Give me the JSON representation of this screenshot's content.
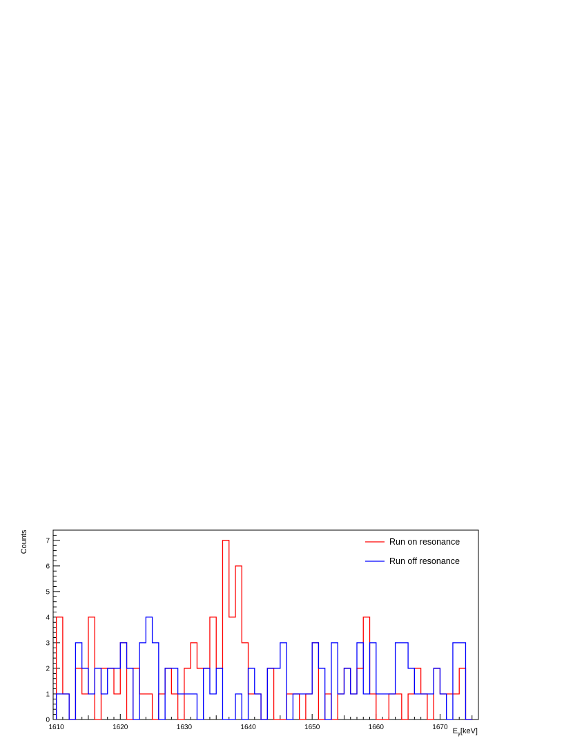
{
  "chart_data": {
    "type": "step",
    "xlabel": "E",
    "xlabel_sub": "γ",
    "xlabel_unit": "[keV]",
    "ylabel": "Counts",
    "xlim": [
      1609.5,
      1676
    ],
    "ylim": [
      0,
      7.4
    ],
    "xticks": [
      1610,
      1620,
      1630,
      1640,
      1650,
      1660,
      1670
    ],
    "yticks": [
      0,
      1,
      2,
      3,
      4,
      5,
      6,
      7
    ],
    "legend_position": "top-right",
    "grid": false,
    "series": [
      {
        "name": "Run on resonance",
        "color": "#ff0000",
        "edges": [
          1610,
          1611,
          1612,
          1613,
          1614,
          1615,
          1616,
          1617,
          1618,
          1619,
          1620,
          1621,
          1622,
          1623,
          1624,
          1625,
          1626,
          1627,
          1628,
          1629,
          1630,
          1631,
          1632,
          1633,
          1634,
          1635,
          1636,
          1637,
          1638,
          1639,
          1640,
          1641,
          1642,
          1643,
          1644,
          1645,
          1646,
          1647,
          1648,
          1649,
          1650,
          1651,
          1652,
          1653,
          1654,
          1655,
          1656,
          1657,
          1658,
          1659,
          1660,
          1661,
          1662,
          1663,
          1664,
          1665,
          1666,
          1667,
          1668,
          1669,
          1670,
          1671,
          1672,
          1673,
          1674,
          1675
        ],
        "values": [
          4,
          1,
          0,
          2,
          1,
          4,
          0,
          2,
          2,
          1,
          3,
          0,
          2,
          1,
          1,
          0,
          1,
          2,
          1,
          0,
          2,
          3,
          2,
          2,
          4,
          2,
          7,
          4,
          6,
          3,
          1,
          1,
          0,
          2,
          0,
          0,
          1,
          1,
          0,
          1,
          3,
          0,
          1,
          0,
          1,
          2,
          1,
          2,
          4,
          1,
          0,
          0,
          1,
          1,
          0,
          1,
          2,
          1,
          0,
          2,
          1,
          1,
          1,
          2,
          0
        ]
      },
      {
        "name": "Run off resonance",
        "color": "#0000ff",
        "edges": [
          1610,
          1611,
          1612,
          1613,
          1614,
          1615,
          1616,
          1617,
          1618,
          1619,
          1620,
          1621,
          1622,
          1623,
          1624,
          1625,
          1626,
          1627,
          1628,
          1629,
          1630,
          1631,
          1632,
          1633,
          1634,
          1635,
          1636,
          1637,
          1638,
          1639,
          1640,
          1641,
          1642,
          1643,
          1644,
          1645,
          1646,
          1647,
          1648,
          1649,
          1650,
          1651,
          1652,
          1653,
          1654,
          1655,
          1656,
          1657,
          1658,
          1659,
          1660,
          1661,
          1662,
          1663,
          1664,
          1665,
          1666,
          1667,
          1668,
          1669,
          1670,
          1671,
          1672,
          1673,
          1674,
          1675
        ],
        "values": [
          1,
          1,
          0,
          3,
          2,
          1,
          2,
          1,
          2,
          2,
          3,
          2,
          0,
          3,
          4,
          3,
          0,
          2,
          2,
          1,
          1,
          1,
          0,
          2,
          1,
          2,
          0,
          0,
          1,
          0,
          2,
          1,
          0,
          2,
          2,
          3,
          0,
          1,
          1,
          1,
          3,
          2,
          0,
          3,
          1,
          2,
          1,
          3,
          1,
          3,
          1,
          1,
          1,
          3,
          3,
          2,
          1,
          1,
          1,
          2,
          1,
          0,
          3,
          3,
          0
        ]
      }
    ]
  }
}
